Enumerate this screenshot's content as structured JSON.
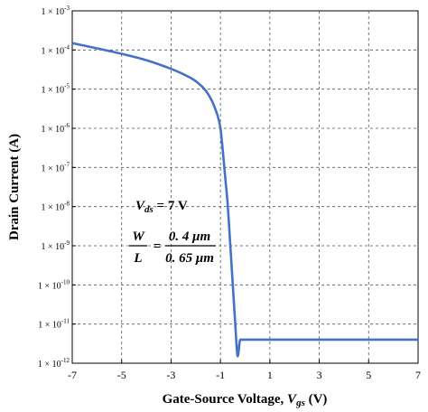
{
  "chart_data": {
    "type": "line",
    "xlabel_main": "Gate-Source Voltage, ",
    "xlabel_var": "V",
    "xlabel_sub": "gs",
    "xlabel_unit": " (V)",
    "ylabel": "Drain Current (A)",
    "xlim": [
      -7,
      7
    ],
    "ylim": [
      1e-12,
      0.001
    ],
    "yscale": "log",
    "grid": true,
    "x_ticks": [
      "-7",
      "-5",
      "-3",
      "-1",
      "1",
      "3",
      "5",
      "7"
    ],
    "y_ticks": [
      {
        "base": "1 × 10",
        "exp": "-3"
      },
      {
        "base": "1 × 10",
        "exp": "-4"
      },
      {
        "base": "1 × 10",
        "exp": "-5"
      },
      {
        "base": "1 × 10",
        "exp": "-6"
      },
      {
        "base": "1 × 10",
        "exp": "-7"
      },
      {
        "base": "1 × 10",
        "exp": "-8"
      },
      {
        "base": "1 × 10",
        "exp": "-9"
      },
      {
        "base": "1 × 10",
        "exp": "-10"
      },
      {
        "base": "1 × 10",
        "exp": "-11"
      },
      {
        "base": "1 × 10",
        "exp": "-12"
      }
    ],
    "series": [
      {
        "color": "#4472C4",
        "x": [
          -7,
          -6,
          -5,
          -4,
          -3,
          -2.5,
          -2,
          -1.5,
          -1.2,
          -1.0,
          -0.9,
          -0.8,
          -0.7,
          -0.6,
          -0.5,
          -0.4,
          -0.3,
          -0.2,
          -0.1,
          0,
          1,
          3,
          5,
          7
        ],
        "y": [
          0.00015,
          0.00011,
          8e-05,
          5.5e-05,
          3.3e-05,
          2.4e-05,
          1.6e-05,
          7.5e-06,
          3e-06,
          1e-06,
          2.5e-07,
          5e-08,
          1e-08,
          1e-09,
          1e-10,
          1e-11,
          1.5e-12,
          4e-12,
          4e-12,
          4e-12,
          4e-12,
          4e-12,
          4e-12,
          4e-12
        ]
      }
    ],
    "annotations": {
      "vds_var": "V",
      "vds_sub": "ds",
      "vds_value": " = 7 V",
      "ratio_lhs_num": "W",
      "ratio_lhs_den": "L",
      "ratio_eq": "=",
      "ratio_rhs_num": "0. 4 μm",
      "ratio_rhs_den": "0. 65 μm"
    }
  }
}
